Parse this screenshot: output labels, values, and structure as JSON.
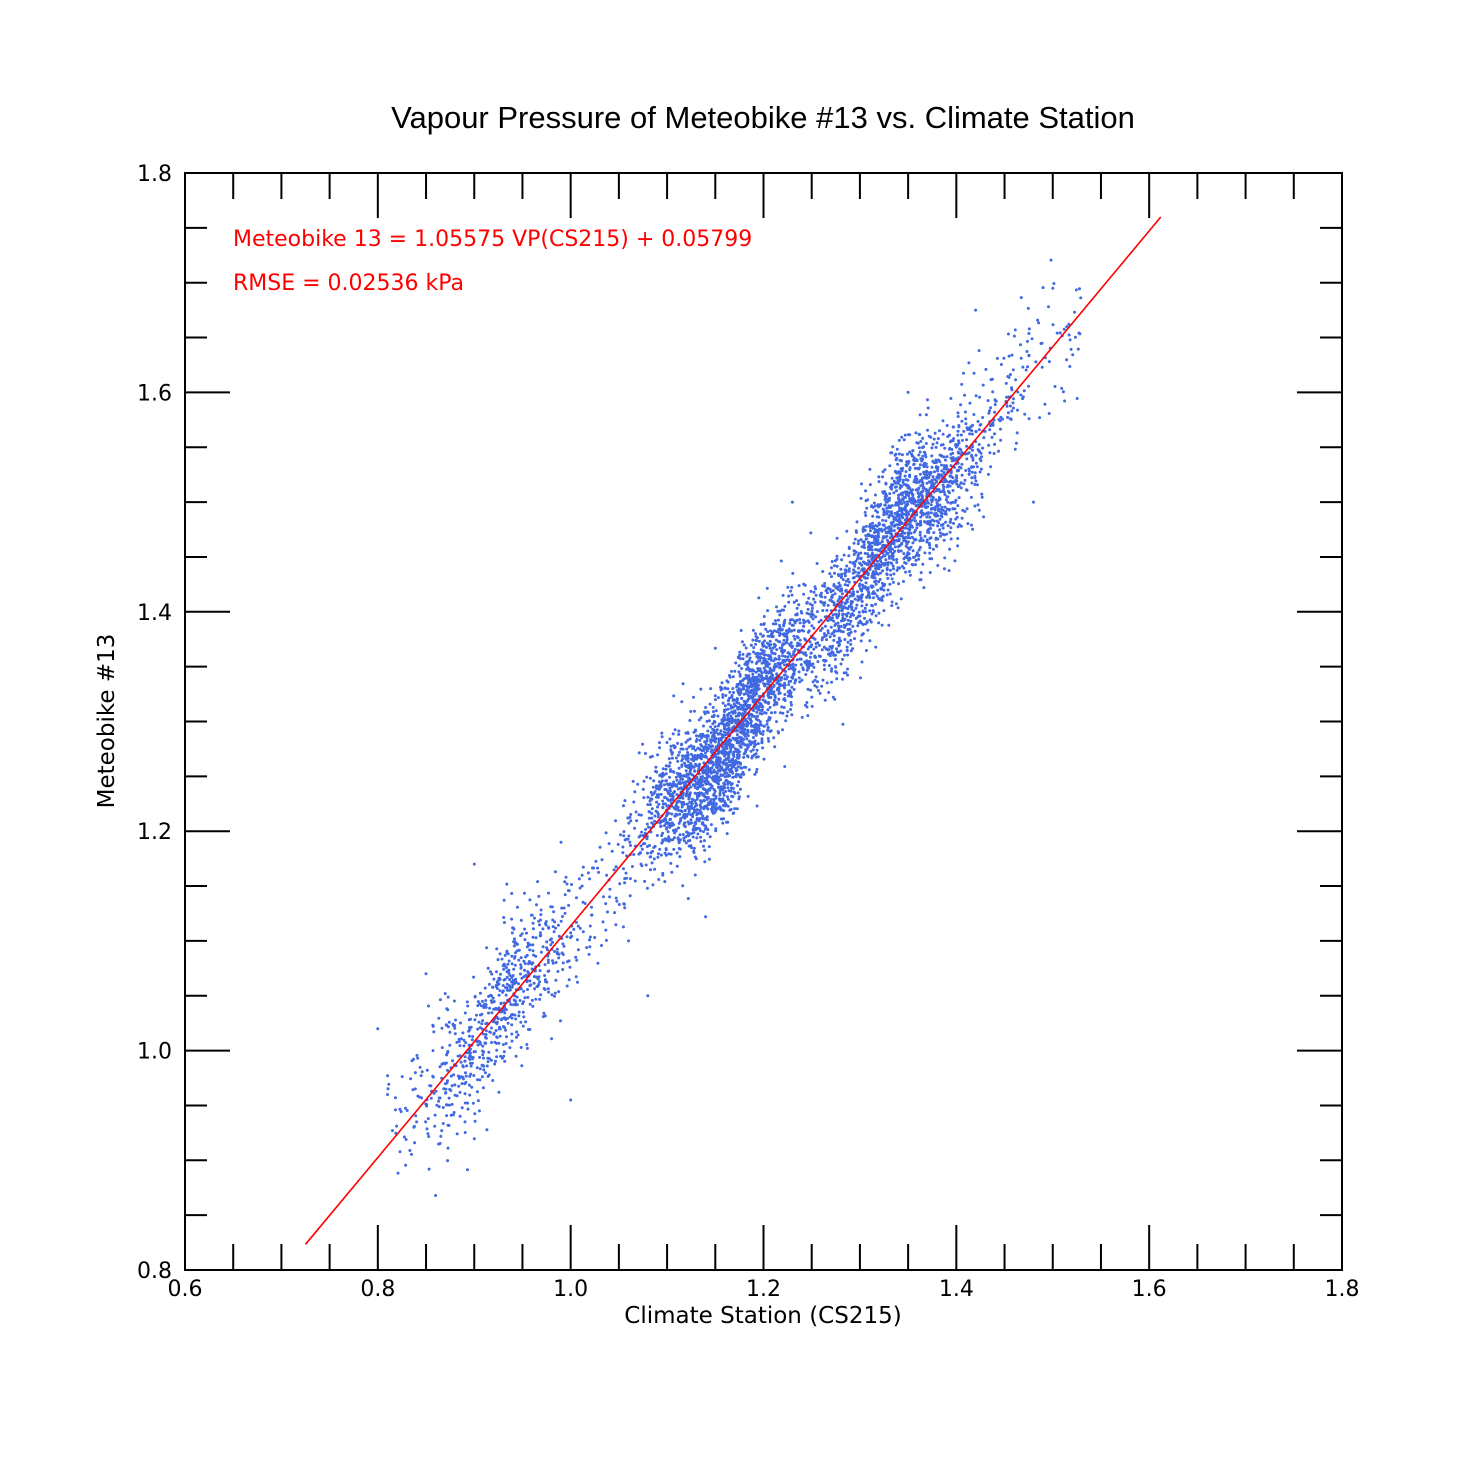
{
  "chart_data": {
    "type": "scatter",
    "title": "Vapour Pressure of Meteobike #13 vs. Climate Station",
    "xlabel": "Climate Station (CS215)",
    "ylabel": "Meteobike #13",
    "xlim": [
      0.6,
      1.8
    ],
    "ylim": [
      0.8,
      1.8
    ],
    "x_ticks": [
      "0.6",
      "0.8",
      "1.0",
      "1.2",
      "1.4",
      "1.6",
      "1.8"
    ],
    "y_ticks": [
      "0.8",
      "1.0",
      "1.2",
      "1.4",
      "1.6",
      "1.8"
    ],
    "grid": false,
    "point_color": "#4169E1",
    "fit_color": "#ff0000",
    "annotations": [
      "Meteobike 13 = 1.05575 VP(CS215) + 0.05799",
      "RMSE = 0.02536 kPa"
    ],
    "fit": {
      "slope": 1.05575,
      "intercept": 0.05799,
      "x_range": [
        0.725,
        1.612
      ]
    },
    "rmse": 0.02536,
    "points_summary": {
      "n_approx": 9000,
      "x_range": [
        0.8,
        1.53
      ],
      "dense_clusters": [
        {
          "x": [
            0.86,
            1.05
          ],
          "y": [
            0.92,
            1.17
          ]
        },
        {
          "x": [
            1.08,
            1.25
          ],
          "y": [
            1.18,
            1.42
          ]
        },
        {
          "x": [
            1.22,
            1.43
          ],
          "y": [
            1.3,
            1.62
          ]
        }
      ]
    },
    "outliers": [
      [
        0.8,
        1.02
      ],
      [
        0.81,
        0.96
      ],
      [
        0.85,
        1.07
      ],
      [
        0.9,
        1.17
      ],
      [
        1.0,
        0.955
      ],
      [
        0.99,
        1.19
      ],
      [
        1.06,
        1.1
      ],
      [
        1.08,
        1.05
      ],
      [
        1.14,
        1.122
      ],
      [
        1.42,
        1.675
      ],
      [
        1.48,
        1.5
      ],
      [
        1.5,
        1.695
      ],
      [
        1.35,
        1.6
      ],
      [
        1.23,
        1.5
      ]
    ]
  }
}
